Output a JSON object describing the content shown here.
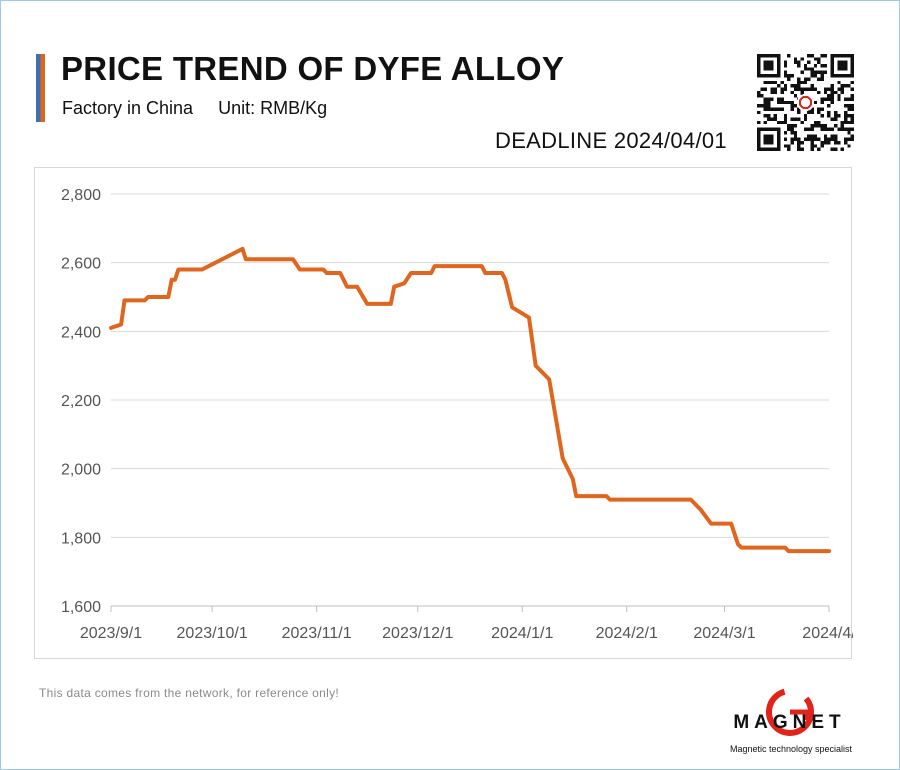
{
  "header": {
    "title": "PRICE TREND OF DYFE ALLOY",
    "subtitle_source": "Factory in China",
    "subtitle_unit": "Unit: RMB/Kg",
    "deadline": "DEADLINE 2024/04/01"
  },
  "colors": {
    "line": "#e0661e",
    "accent_blue": "#3f6fb5",
    "accent_orange": "#e0661e",
    "grid": "#d9d9d9",
    "logo_red": "#e2231a"
  },
  "chart_data": {
    "type": "line",
    "title": "PRICE TREND OF DYFE ALLOY",
    "xlabel": "",
    "ylabel": "",
    "ylim": [
      1600,
      2800
    ],
    "yticks": [
      1600,
      1800,
      2000,
      2200,
      2400,
      2600,
      2800
    ],
    "ytick_labels": [
      "1,600",
      "1,800",
      "2,000",
      "2,200",
      "2,400",
      "2,600",
      "2,800"
    ],
    "xticks": [
      "2023-09-01",
      "2023-10-01",
      "2023-11-01",
      "2023-12-01",
      "2024-01-01",
      "2024-02-01",
      "2024-03-01",
      "2024-04-01"
    ],
    "xtick_labels": [
      "2023/9/1",
      "2023/10/1",
      "2023/11/1",
      "2023/12/1",
      "2024/1/1",
      "2024/2/1",
      "2024/3/1",
      "2024/4/"
    ],
    "grid": "horizontal",
    "series": [
      {
        "points": [
          [
            "2023-09-01",
            2410
          ],
          [
            "2023-09-04",
            2420
          ],
          [
            "2023-09-05",
            2490
          ],
          [
            "2023-09-11",
            2490
          ],
          [
            "2023-09-12",
            2500
          ],
          [
            "2023-09-18",
            2500
          ],
          [
            "2023-09-19",
            2550
          ],
          [
            "2023-09-20",
            2550
          ],
          [
            "2023-09-21",
            2580
          ],
          [
            "2023-09-28",
            2580
          ],
          [
            "2023-10-10",
            2640
          ],
          [
            "2023-10-11",
            2610
          ],
          [
            "2023-10-25",
            2610
          ],
          [
            "2023-10-27",
            2580
          ],
          [
            "2023-11-03",
            2580
          ],
          [
            "2023-11-04",
            2570
          ],
          [
            "2023-11-08",
            2570
          ],
          [
            "2023-11-09",
            2550
          ],
          [
            "2023-11-10",
            2530
          ],
          [
            "2023-11-13",
            2530
          ],
          [
            "2023-11-16",
            2480
          ],
          [
            "2023-11-23",
            2480
          ],
          [
            "2023-11-24",
            2530
          ],
          [
            "2023-11-27",
            2540
          ],
          [
            "2023-11-29",
            2570
          ],
          [
            "2023-12-05",
            2570
          ],
          [
            "2023-12-06",
            2590
          ],
          [
            "2023-12-20",
            2590
          ],
          [
            "2023-12-21",
            2570
          ],
          [
            "2023-12-26",
            2570
          ],
          [
            "2023-12-27",
            2550
          ],
          [
            "2023-12-29",
            2470
          ],
          [
            "2024-01-03",
            2440
          ],
          [
            "2024-01-05",
            2300
          ],
          [
            "2024-01-09",
            2260
          ],
          [
            "2024-01-13",
            2030
          ],
          [
            "2024-01-16",
            1970
          ],
          [
            "2024-01-17",
            1920
          ],
          [
            "2024-01-26",
            1920
          ],
          [
            "2024-01-27",
            1910
          ],
          [
            "2024-02-20",
            1910
          ],
          [
            "2024-02-23",
            1880
          ],
          [
            "2024-02-26",
            1840
          ],
          [
            "2024-03-03",
            1840
          ],
          [
            "2024-03-05",
            1780
          ],
          [
            "2024-03-06",
            1770
          ],
          [
            "2024-03-19",
            1770
          ],
          [
            "2024-03-20",
            1760
          ],
          [
            "2024-04-01",
            1760
          ]
        ]
      }
    ]
  },
  "footer": {
    "note": "This data comes from the network, for reference only!",
    "brand_name": "MAGNET",
    "brand_tagline": "Magnetic technology specialist",
    "brand_mark_letter": "G"
  },
  "icons": {
    "qr": "qr-code-icon",
    "logo": "magnet-logo-icon"
  }
}
